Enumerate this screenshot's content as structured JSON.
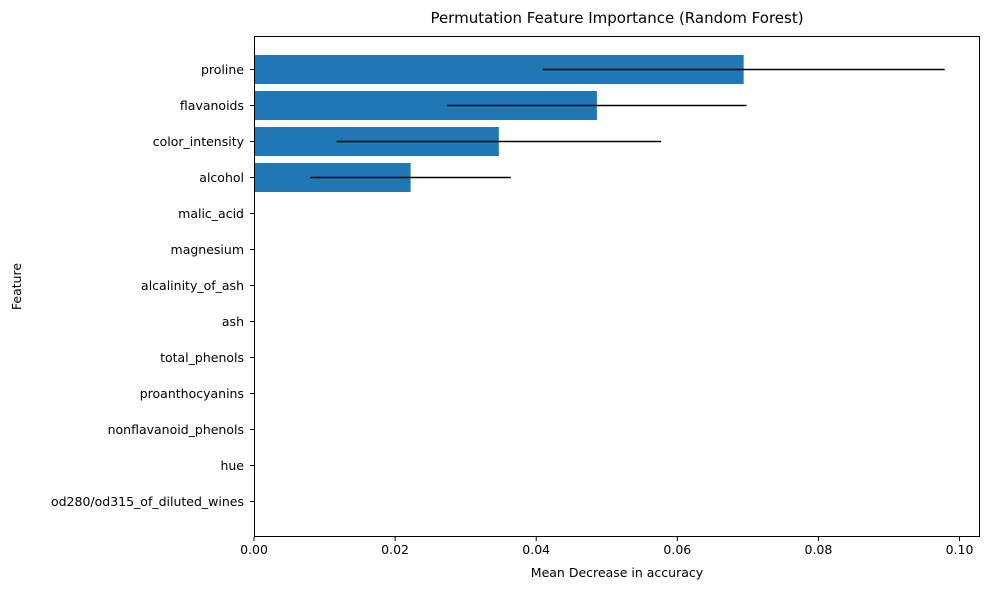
{
  "chart_data": {
    "type": "bar",
    "orientation": "horizontal",
    "title": "Permutation Feature Importance (Random Forest)",
    "xlabel": "Mean Decrease in accuracy",
    "ylabel": "Feature",
    "xlim": [
      0,
      0.1029
    ],
    "xticks": [
      0.0,
      0.02,
      0.04,
      0.06,
      0.08,
      0.1
    ],
    "xtick_labels": [
      "0.00",
      "0.02",
      "0.04",
      "0.06",
      "0.08",
      "0.10"
    ],
    "grid": false,
    "legend": "none",
    "bar_color": "#1f77b4",
    "error_color": "#000000",
    "categories": [
      "proline",
      "flavanoids",
      "color_intensity",
      "alcohol",
      "malic_acid",
      "magnesium",
      "alcalinity_of_ash",
      "ash",
      "total_phenols",
      "proanthocyanins",
      "nonflavanoid_phenols",
      "hue",
      "od280/od315_of_diluted_wines"
    ],
    "values": [
      0.0694,
      0.0486,
      0.0347,
      0.0222,
      0,
      0,
      0,
      0,
      0,
      0,
      0,
      0,
      0
    ],
    "errors": [
      0.0285,
      0.0212,
      0.023,
      0.0142,
      0,
      0,
      0,
      0,
      0,
      0,
      0,
      0,
      0
    ]
  }
}
